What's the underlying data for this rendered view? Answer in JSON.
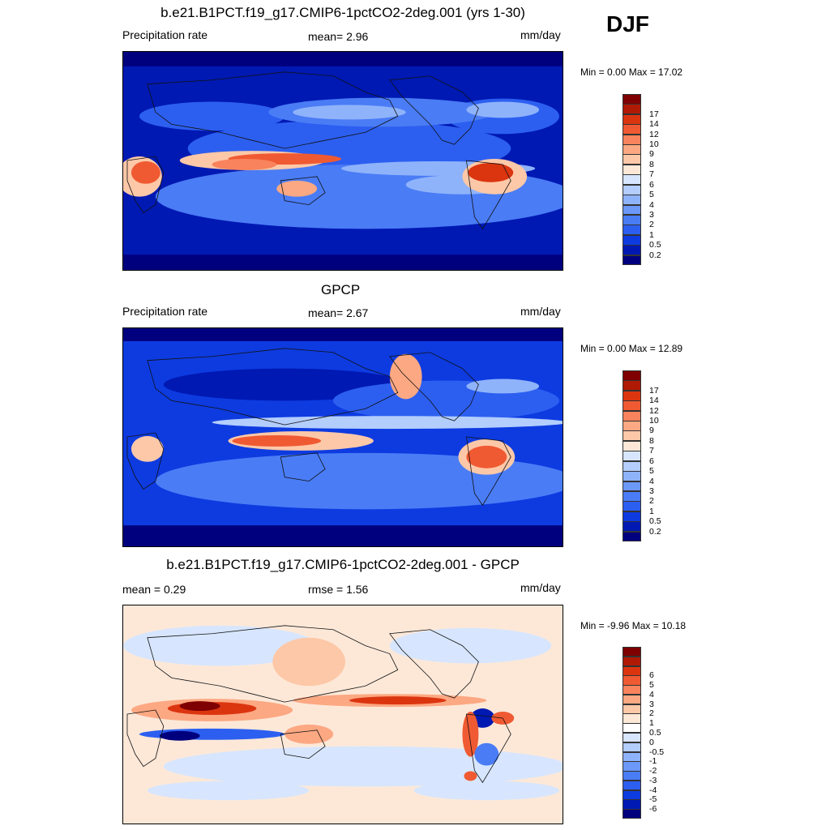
{
  "season": "DJF",
  "panels": [
    {
      "id": "model",
      "title": "b.e21.B1PCT.f19_g17.CMIP6-1pctCO2-2deg.001 (yrs 1-30)",
      "left_label": "Precipitation rate",
      "center_label": "mean=   2.96",
      "units": "mm/day",
      "minmax": "Min =   0.00 Max =  17.02"
    },
    {
      "id": "obs",
      "title": "GPCP",
      "left_label": "Precipitation rate",
      "center_label": "mean=   2.67",
      "units": "mm/day",
      "minmax": "Min =   0.00 Max =  12.89"
    },
    {
      "id": "diff",
      "title": "b.e21.B1PCT.f19_g17.CMIP6-1pctCO2-2deg.001 - GPCP",
      "left_label": "mean =   0.29",
      "center_label": "rmse =   1.56",
      "units": "mm/day",
      "minmax": "Min =  -9.96 Max =  10.18"
    }
  ],
  "colors": {
    "precip": [
      "#00007f",
      "#0019b3",
      "#0d3be0",
      "#2c5ff0",
      "#4a7cf5",
      "#6c98f8",
      "#8fb3fb",
      "#b3cdfd",
      "#d7e6fe",
      "#fde8d8",
      "#fdc8a8",
      "#fca882",
      "#f9835c",
      "#f05a32",
      "#db3510",
      "#b01a05",
      "#7f0000"
    ],
    "diff": [
      "#00007f",
      "#0019b3",
      "#0d3be0",
      "#2c5ff0",
      "#4a7cf5",
      "#6c98f8",
      "#8fb3fb",
      "#b3cdfd",
      "#d7e6fe",
      "#ffffff",
      "#fde8d8",
      "#fdc8a8",
      "#fca882",
      "#f9835c",
      "#f05a32",
      "#db3510",
      "#b01a05",
      "#7f0000"
    ],
    "land_line": "#111111"
  },
  "colorbars": {
    "precip": {
      "levels": [
        "0.2",
        "0.5",
        "1",
        "2",
        "3",
        "4",
        "5",
        "6",
        "7",
        "8",
        "9",
        "10",
        "12",
        "14",
        "17"
      ]
    },
    "diff": {
      "levels": [
        "-6",
        "-5",
        "-4",
        "-3",
        "-2",
        "-1",
        "-0.5",
        "0",
        "0.5",
        "1",
        "2",
        "3",
        "4",
        "5",
        "6"
      ]
    }
  },
  "chart_data": [
    {
      "type": "heatmap",
      "title": "b.e21.B1PCT.f19_g17.CMIP6-1pctCO2-2deg.001 (yrs 1-30)",
      "variable": "Precipitation rate",
      "units": "mm/day",
      "mean": 2.96,
      "min": 0.0,
      "max": 17.02,
      "contour_levels": [
        0.2,
        0.5,
        1,
        2,
        3,
        4,
        5,
        6,
        7,
        8,
        9,
        10,
        12,
        14,
        17
      ]
    },
    {
      "type": "heatmap",
      "title": "GPCP",
      "variable": "Precipitation rate",
      "units": "mm/day",
      "mean": 2.67,
      "min": 0.0,
      "max": 12.89,
      "contour_levels": [
        0.2,
        0.5,
        1,
        2,
        3,
        4,
        5,
        6,
        7,
        8,
        9,
        10,
        12,
        14,
        17
      ]
    },
    {
      "type": "heatmap",
      "title": "b.e21.B1PCT.f19_g17.CMIP6-1pctCO2-2deg.001 - GPCP",
      "units": "mm/day",
      "mean": 0.29,
      "rmse": 1.56,
      "min": -9.96,
      "max": 10.18,
      "contour_levels": [
        -6,
        -5,
        -4,
        -3,
        -2,
        -1,
        -0.5,
        0,
        0.5,
        1,
        2,
        3,
        4,
        5,
        6
      ]
    }
  ]
}
